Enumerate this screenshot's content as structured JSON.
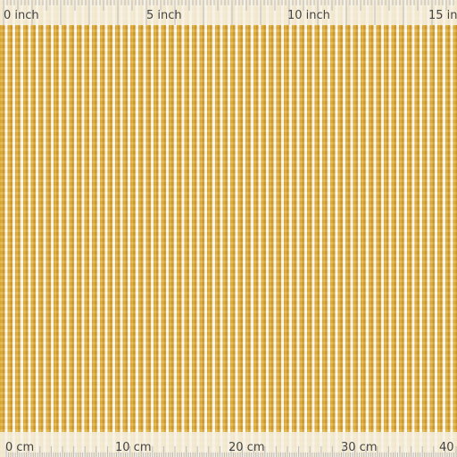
{
  "ruler_top": {
    "labels": [
      "0 inch",
      "5 inch",
      "10 inch",
      "15 in"
    ]
  },
  "ruler_bottom": {
    "labels": [
      "0 cm",
      "10 cm",
      "20 cm",
      "30 cm",
      "40"
    ]
  }
}
